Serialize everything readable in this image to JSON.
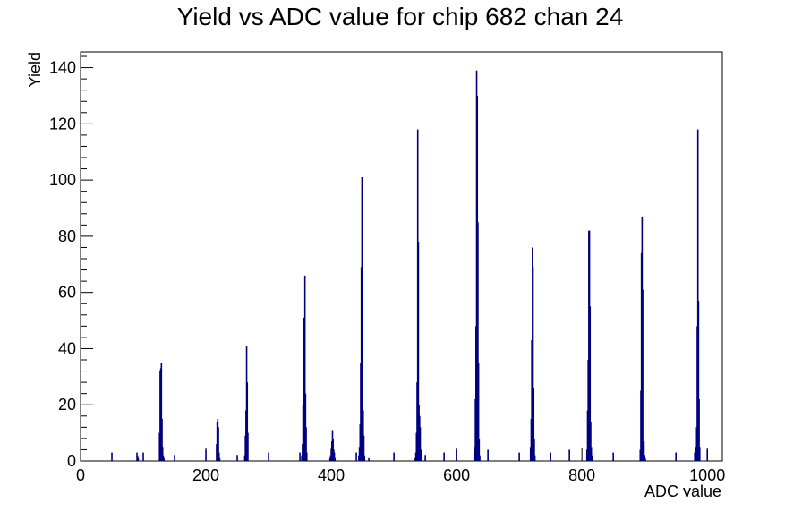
{
  "chart_data": {
    "type": "bar",
    "title": "Yield vs ADC value for chip 682 chan 24",
    "xlabel": "ADC value",
    "ylabel": "Yield",
    "xlim": [
      0,
      1024
    ],
    "ylim": [
      0,
      145.6
    ],
    "xticks": [
      0,
      200,
      400,
      600,
      800,
      1000
    ],
    "yticks": [
      0,
      20,
      40,
      60,
      80,
      100,
      120,
      140
    ],
    "grid": false,
    "legend": "none",
    "line_color": "#00007f",
    "series": [
      {
        "x": [
          50,
          90,
          91,
          92,
          100,
          126,
          127,
          128,
          129,
          130,
          131,
          132,
          133,
          150,
          200,
          217,
          218,
          219,
          220,
          221,
          222,
          250,
          262,
          263,
          264,
          265,
          266,
          267,
          300,
          350,
          353,
          354,
          355,
          356,
          357,
          358,
          359,
          360,
          361,
          398,
          399,
          400,
          401,
          402,
          403,
          404,
          405,
          406,
          440,
          444,
          445,
          446,
          447,
          448,
          449,
          450,
          451,
          452,
          453,
          460,
          500,
          534,
          535,
          536,
          537,
          538,
          539,
          540,
          541,
          542,
          543,
          550,
          580,
          600,
          628,
          629,
          630,
          631,
          632,
          633,
          634,
          635,
          636,
          637,
          650,
          700,
          718,
          719,
          720,
          721,
          722,
          723,
          724,
          725,
          750,
          780,
          808,
          809,
          810,
          811,
          812,
          813,
          814,
          815,
          816,
          850,
          893,
          894,
          895,
          896,
          897,
          898,
          899,
          900,
          901,
          950,
          980,
          982,
          983,
          984,
          985,
          986,
          987,
          988,
          1000
        ],
        "values": [
          3,
          3,
          2,
          1,
          3,
          10,
          32,
          33,
          35,
          15,
          5,
          2,
          1,
          2,
          4,
          6,
          14,
          15,
          12,
          3,
          1,
          2,
          2,
          9,
          18,
          41,
          28,
          10,
          3,
          3,
          2,
          6,
          20,
          51,
          45,
          66,
          24,
          12,
          3,
          1,
          2,
          4,
          7,
          11,
          8,
          4,
          3,
          1,
          3,
          2,
          5,
          13,
          35,
          69,
          101,
          38,
          18,
          9,
          2,
          1,
          3,
          1,
          3,
          10,
          28,
          118,
          78,
          20,
          16,
          12,
          4,
          2,
          3,
          4,
          3,
          5,
          22,
          48,
          139,
          130,
          85,
          35,
          8,
          2,
          4,
          3,
          5,
          15,
          43,
          76,
          69,
          26,
          8,
          2,
          3,
          4,
          4,
          18,
          36,
          82,
          82,
          55,
          14,
          5,
          2,
          3,
          4,
          25,
          74,
          87,
          61,
          6,
          7,
          2,
          1,
          3,
          3,
          5,
          12,
          48,
          118,
          57,
          22,
          5,
          4
        ]
      }
    ]
  }
}
